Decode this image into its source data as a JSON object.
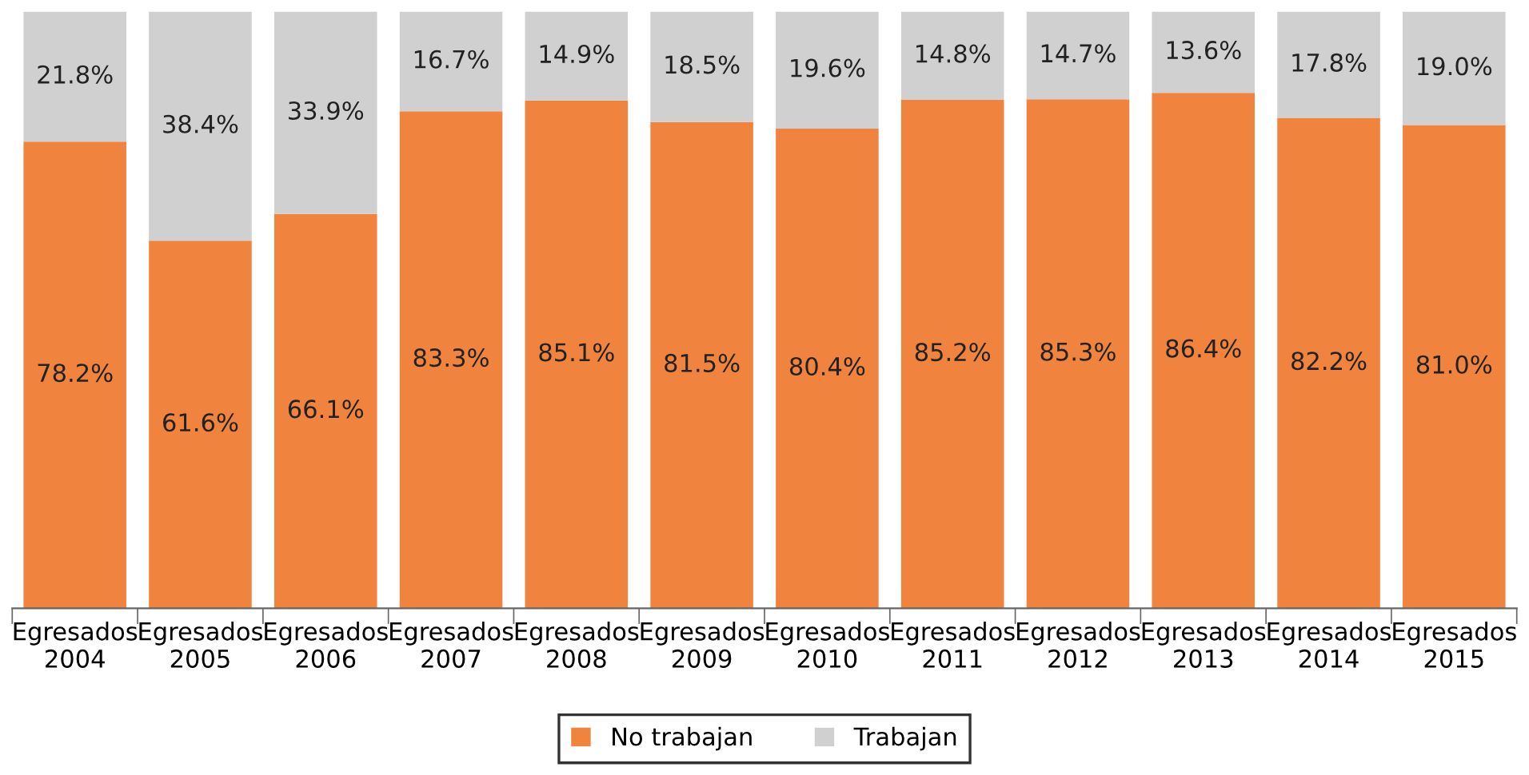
{
  "chart_data": {
    "type": "bar",
    "stacked": true,
    "categories": [
      "Egresados\n2004",
      "Egresados\n2005",
      "Egresados\n2006",
      "Egresados\n2007",
      "Egresados\n2008",
      "Egresados\n2009",
      "Egresados\n2010",
      "Egresados\n2011",
      "Egresados\n2012",
      "Egresados\n2013",
      "Egresados\n2014",
      "Egresados\n2015"
    ],
    "series": [
      {
        "name": "No trabajan",
        "color": "#f0843f",
        "values": [
          78.2,
          61.6,
          66.1,
          83.3,
          85.1,
          81.5,
          80.4,
          85.2,
          85.3,
          86.4,
          82.2,
          81.0
        ],
        "value_labels": [
          "78.2%",
          "61.6%",
          "66.1%",
          "83.3%",
          "85.1%",
          "81.5%",
          "80.4%",
          "85.2%",
          "85.3%",
          "86.4%",
          "82.2%",
          "81.0%"
        ]
      },
      {
        "name": "Trabajan",
        "color": "#d0d0d0",
        "values": [
          21.8,
          38.4,
          33.9,
          16.7,
          14.9,
          18.5,
          19.6,
          14.8,
          14.7,
          13.6,
          17.8,
          19.0
        ],
        "value_labels": [
          "21.8%",
          "38.4%",
          "33.9%",
          "16.7%",
          "14.9%",
          "18.5%",
          "19.6%",
          "14.8%",
          "14.7%",
          "13.6%",
          "17.8%",
          "19.0%"
        ]
      }
    ],
    "grid": false,
    "legend": "bottom"
  }
}
